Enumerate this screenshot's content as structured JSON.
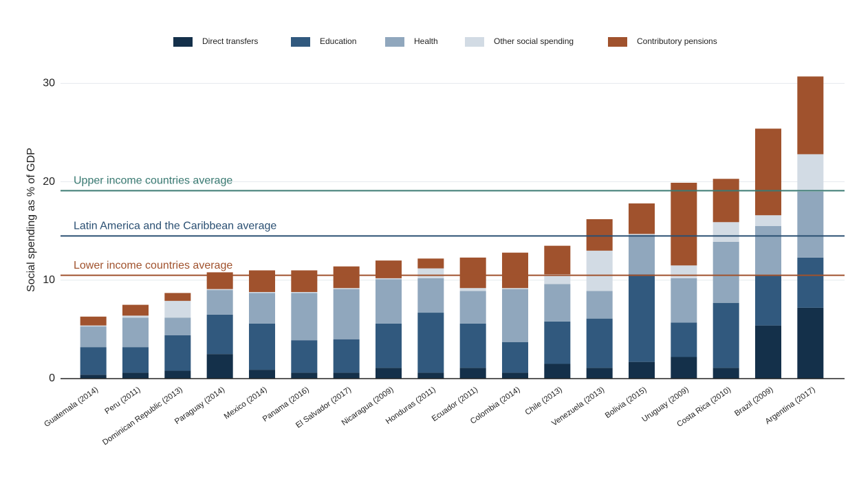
{
  "chart_data": {
    "type": "stacked_bar",
    "y_axis_label": "Social spending as % of GDP",
    "categories": [
      "Guatemala (2014)",
      "Peru (2011)",
      "Dominican Republic (2013)",
      "Paraguay (2014)",
      "Mexico (2014)",
      "Panama (2016)",
      "El Salvador (2017)",
      "Nicaragua (2009)",
      "Honduras (2011)",
      "Ecuador (2011)",
      "Colombia (2014)",
      "Chile (2013)",
      "Venezuela (2013)",
      "Bolivia (2015)",
      "Uruguay (2009)",
      "Costa Rica (2010)",
      "Brazil (2009)",
      "Argentina (2017)"
    ],
    "series": [
      {
        "name": "Direct transfers",
        "color": "#14304a",
        "values": [
          0.4,
          0.6,
          0.8,
          2.5,
          0.9,
          0.6,
          0.6,
          1.1,
          0.6,
          1.1,
          0.6,
          1.5,
          1.1,
          1.7,
          2.2,
          1.1,
          5.4,
          7.2
        ]
      },
      {
        "name": "Education",
        "color": "#31597e",
        "values": [
          2.8,
          2.6,
          3.6,
          4.0,
          4.7,
          3.3,
          3.4,
          4.5,
          6.1,
          4.5,
          3.1,
          4.3,
          5.0,
          8.9,
          3.5,
          6.6,
          5.1,
          5.1
        ]
      },
      {
        "name": "Health",
        "color": "#90a7bd",
        "values": [
          2.1,
          3.0,
          1.8,
          2.5,
          3.1,
          4.8,
          5.1,
          4.5,
          3.5,
          3.3,
          5.4,
          3.8,
          2.8,
          4.0,
          4.5,
          6.2,
          5.0,
          6.7
        ]
      },
      {
        "name": "Other social spending",
        "color": "#d2dbe4",
        "values": [
          0.1,
          0.2,
          1.7,
          0.1,
          0.1,
          0.1,
          0.1,
          0.1,
          1.0,
          0.3,
          0.1,
          1.0,
          4.1,
          0.1,
          1.3,
          2.0,
          1.1,
          3.8
        ]
      },
      {
        "name": "Contributory pensions",
        "color": "#a0522d",
        "values": [
          0.9,
          1.1,
          0.8,
          1.7,
          2.2,
          2.2,
          2.2,
          1.8,
          1.0,
          3.1,
          3.6,
          2.9,
          3.2,
          3.1,
          8.4,
          4.4,
          8.8,
          7.9
        ]
      }
    ],
    "reference_lines": [
      {
        "label": "Upper income countries average",
        "value": 19.1,
        "color": "#3a7a72"
      },
      {
        "label": "Latin America and the Caribbean average",
        "value": 14.5,
        "color": "#2a4f72"
      },
      {
        "label": "Lower income countries average",
        "value": 10.5,
        "color": "#a0522d"
      }
    ],
    "ylim": [
      0,
      31
    ],
    "yticks": [
      0,
      10,
      20,
      30
    ],
    "grid": true
  }
}
